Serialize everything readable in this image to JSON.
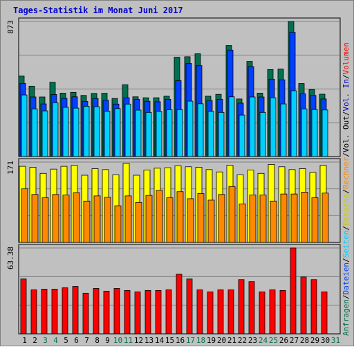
{
  "chart_data": [
    {
      "type": "bar",
      "title": "Tages-Statistik im Monat Juni 2017",
      "categories": [
        "1",
        "2",
        "3",
        "4",
        "5",
        "6",
        "7",
        "8",
        "9",
        "10",
        "11",
        "12",
        "13",
        "14",
        "15",
        "16",
        "17",
        "18",
        "19",
        "20",
        "21",
        "22",
        "23",
        "24",
        "25",
        "26",
        "27",
        "28",
        "29",
        "30",
        "31"
      ],
      "weekend_days": [
        "3",
        "4",
        "10",
        "11",
        "17",
        "18",
        "24",
        "25",
        "31"
      ],
      "ymax_label": "873",
      "ylim": [
        0,
        873
      ],
      "series": [
        {
          "name": "Anfragen",
          "color": "#007050",
          "values": [
            520,
            455,
            385,
            480,
            410,
            415,
            395,
            408,
            409,
            375,
            464,
            386,
            380,
            380,
            390,
            642,
            645,
            664,
            390,
            402,
            718,
            372,
            615,
            410,
            562,
            565,
            873,
            472,
            433,
            403,
            null
          ]
        },
        {
          "name": "Dateien",
          "color": "#0040ff",
          "values": [
            473,
            385,
            340,
            401,
            376,
            386,
            356,
            375,
            364,
            339,
            380,
            369,
            357,
            354,
            370,
            490,
            602,
            588,
            362,
            370,
            688,
            345,
            581,
            385,
            500,
            496,
            803,
            405,
            395,
            372,
            null
          ]
        },
        {
          "name": "Seiten",
          "color": "#00d0ff",
          "values": [
            398,
            308,
            295,
            348,
            318,
            313,
            325,
            322,
            293,
            310,
            339,
            300,
            285,
            292,
            302,
            303,
            358,
            341,
            292,
            285,
            386,
            268,
            385,
            285,
            380,
            340,
            425,
            308,
            304,
            301,
            null
          ]
        }
      ]
    },
    {
      "type": "bar",
      "ymax_label": "171",
      "ylim": [
        0,
        171
      ],
      "series": [
        {
          "name": "Besuche",
          "color": "#ffff00",
          "values": [
            162,
            160,
            147,
            156,
            162,
            164,
            143,
            157,
            155,
            144,
            168,
            143,
            154,
            158,
            159,
            163,
            161,
            160,
            155,
            150,
            164,
            144,
            154,
            147,
            166,
            161,
            155,
            157,
            149,
            164,
            null
          ]
        },
        {
          "name": "Rechner",
          "color": "#ff8800",
          "values": [
            114,
            102,
            95,
            102,
            101,
            106,
            88,
            99,
            96,
            78,
            99,
            85,
            100,
            111,
            95,
            108,
            93,
            104,
            90,
            102,
            119,
            82,
            101,
            101,
            88,
            103,
            103,
            107,
            95,
            105,
            null
          ]
        }
      ]
    },
    {
      "type": "bar",
      "ymax_label": "63.38",
      "ylim": [
        0,
        63.38
      ],
      "series": [
        {
          "name": "Volumen",
          "color": "#ff0000",
          "values": [
            40.5,
            32.5,
            33.0,
            33.0,
            34.0,
            35.0,
            30.0,
            33.5,
            31.5,
            33.5,
            32.0,
            31.0,
            32.0,
            32.0,
            32.5,
            44.0,
            40.5,
            32.5,
            31.0,
            32.5,
            32.5,
            40.0,
            38.5,
            31.0,
            32.5,
            32.0,
            63.38,
            42.0,
            40.0,
            31.0,
            null
          ]
        }
      ]
    }
  ],
  "legend": {
    "right": [
      {
        "text": "Anfragen",
        "color": "#007050"
      },
      {
        "text": "/",
        "color": "#000000"
      },
      {
        "text": "Dateien",
        "color": "#0040ff"
      },
      {
        "text": "/",
        "color": "#000000"
      },
      {
        "text": "Seiten",
        "color": "#00d0ff"
      },
      {
        "text": "/",
        "color": "#000000"
      },
      {
        "text": "Besuche",
        "color": "#cccc00"
      },
      {
        "text": "/",
        "color": "#000000"
      },
      {
        "text": "Rechner",
        "color": "#ff8800"
      },
      {
        "text": "/",
        "color": "#000000"
      },
      {
        "text": "Vol. Out",
        "color": "#000000"
      },
      {
        "text": "/",
        "color": "#000000"
      },
      {
        "text": "Vol. In",
        "color": "#0000cc"
      },
      {
        "text": "/",
        "color": "#000000"
      },
      {
        "text": "Volumen",
        "color": "#ff0000"
      }
    ]
  },
  "colors": {
    "panel_bg": "#c0c0c0",
    "grid": "#808080",
    "title": "#0000cc",
    "weekday_label": "#000000",
    "weekend_label": "#007050"
  }
}
